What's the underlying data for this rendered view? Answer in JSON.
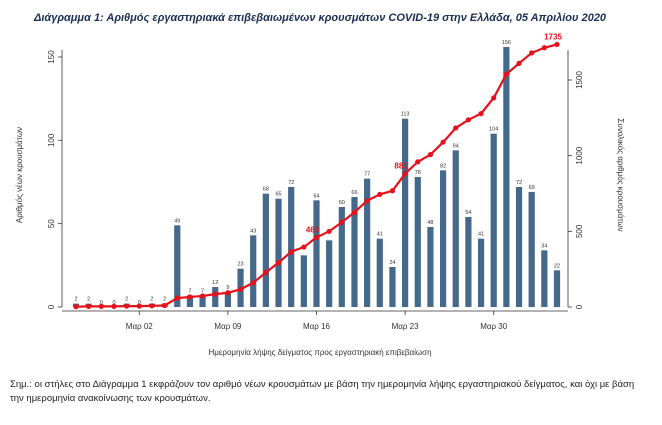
{
  "chart_data": {
    "type": "bar+line",
    "title": "Διάγραμμα 1: Αριθμός εργαστηριακά επιβεβαιωμένων κρουσμάτων COVID-19 στην Ελλάδα, 05 Απριλίου 2020",
    "xlabel": "Ημερομηνία λήψης δείγματος προς εργαστηριακή επιβεβαίωση",
    "ylabel_left": "Αριθμός νέων κρουσμάτων",
    "ylabel_right": "Συνολικός αριθμός κρουσμάτων",
    "ylim_left": [
      0,
      160
    ],
    "ylim_right": [
      0,
      1800
    ],
    "yticks_left": [
      0,
      50,
      100,
      150
    ],
    "yticks_right": [
      0,
      500,
      1000,
      1500
    ],
    "xticks": [
      {
        "index": 5,
        "label": "Μαρ 02"
      },
      {
        "index": 12,
        "label": "Μαρ 09"
      },
      {
        "index": 19,
        "label": "Μαρ 16"
      },
      {
        "index": 26,
        "label": "Μαρ 23"
      },
      {
        "index": 33,
        "label": "Μαρ 30"
      }
    ],
    "bar_color": "#45698a",
    "line_color": "#e8101a",
    "series": [
      {
        "type": "bar",
        "values": [
          2,
          2,
          0,
          0,
          2,
          0,
          2,
          2,
          49,
          7,
          7,
          12,
          9,
          23,
          43,
          68,
          65,
          72,
          31,
          64,
          40,
          60,
          66,
          77,
          41,
          24,
          113,
          78,
          48,
          82,
          94,
          54,
          41,
          104,
          156,
          72,
          69,
          34,
          22
        ],
        "labels": [
          "2",
          "2",
          "0",
          "0",
          "2",
          "0",
          "2",
          "2",
          "49",
          "7",
          "7",
          "12",
          "9",
          "23",
          "43",
          "68",
          "65",
          "72",
          "",
          "64",
          "",
          "60",
          "66",
          "77",
          "41",
          "24",
          "113",
          "78",
          "48",
          "82",
          "94",
          "54",
          "41",
          "104",
          "156",
          "72",
          "69",
          "34",
          "22"
        ]
      },
      {
        "type": "line",
        "values": [
          2,
          4,
          4,
          4,
          6,
          6,
          8,
          10,
          59,
          66,
          73,
          85,
          94,
          117,
          160,
          228,
          293,
          365,
          396,
          460,
          500,
          560,
          626,
          703,
          744,
          768,
          881,
          959,
          1007,
          1089,
          1183,
          1237,
          1278,
          1382,
          1538,
          1610,
          1679,
          1713,
          1735
        ]
      }
    ],
    "annotations": [
      {
        "index": 19,
        "text": "460"
      },
      {
        "index": 26,
        "text": "881"
      },
      {
        "index": 38,
        "text": "1735"
      }
    ]
  },
  "note": "Σημ.: οι στήλες στο Διάγραμμα 1 εκφράζουν τον αριθμό νέων κρουσμάτων με βάση την ημερομηνία λήψης εργαστηριακού δείγματος, και όχι με βάση την ημερομηνία ανακοίνωσης των κρουσμάτων."
}
